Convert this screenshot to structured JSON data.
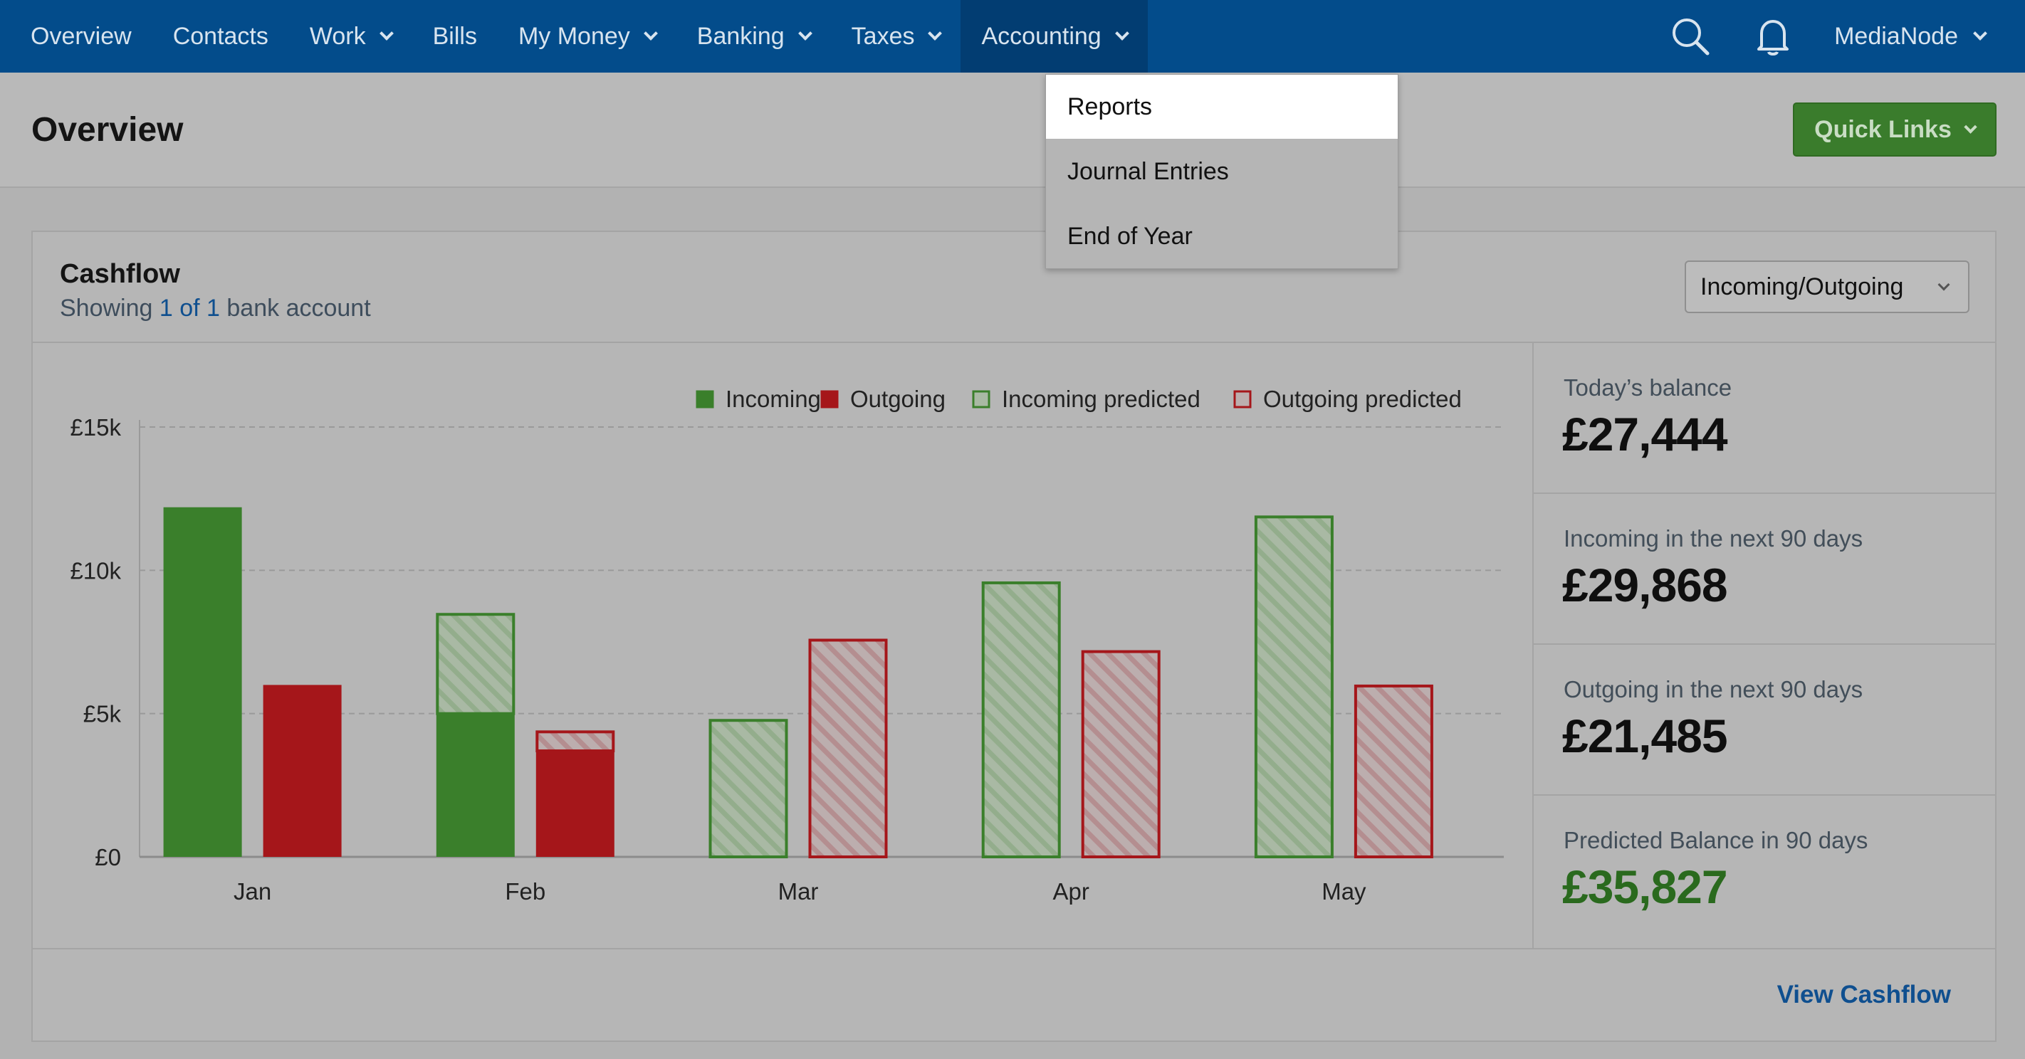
{
  "nav": {
    "items": [
      {
        "label": "Overview",
        "dropdown": false,
        "active": false
      },
      {
        "label": "Contacts",
        "dropdown": false,
        "active": false
      },
      {
        "label": "Work",
        "dropdown": true,
        "active": false
      },
      {
        "label": "Bills",
        "dropdown": false,
        "active": false
      },
      {
        "label": "My Money",
        "dropdown": true,
        "active": false
      },
      {
        "label": "Banking",
        "dropdown": true,
        "active": false
      },
      {
        "label": "Taxes",
        "dropdown": true,
        "active": false
      },
      {
        "label": "Accounting",
        "dropdown": true,
        "active": true
      }
    ],
    "user": "MediaNode",
    "icons": [
      "search-icon",
      "bell-icon"
    ]
  },
  "accounting_menu": {
    "items": [
      "Reports",
      "Journal Entries",
      "End of Year"
    ],
    "hovered": "Reports"
  },
  "header": {
    "title": "Overview",
    "quick_links": "Quick Links"
  },
  "cashflow": {
    "title": "Cashflow",
    "subtitle_prefix": "Showing ",
    "subtitle_link": "1 of 1",
    "subtitle_suffix": " bank account",
    "select_value": "Incoming/Outgoing",
    "view_link": "View Cashflow"
  },
  "stats": [
    {
      "label": "Today’s balance",
      "value": "£27,444",
      "positive": false
    },
    {
      "label": "Incoming in the next 90 days",
      "value": "£29,868",
      "positive": false
    },
    {
      "label": "Outgoing in the next 90 days",
      "value": "£21,485",
      "positive": false
    },
    {
      "label": "Predicted Balance in 90 days",
      "value": "£35,827",
      "positive": true
    }
  ],
  "colors": {
    "incoming": "#3a7f2b",
    "outgoing": "#a5161a",
    "nav_bg": "#034c8b"
  },
  "chart_data": {
    "type": "bar",
    "categories": [
      "Jan",
      "Feb",
      "Mar",
      "Apr",
      "May"
    ],
    "y_ticks": [
      "£0",
      "£5k",
      "£10k",
      "£15k"
    ],
    "ylim": [
      0,
      15000
    ],
    "grid": true,
    "legend_position": "top-right",
    "series": [
      {
        "name": "Incoming",
        "values": [
          12200,
          5000,
          0,
          0,
          0
        ]
      },
      {
        "name": "Outgoing",
        "values": [
          6000,
          3700,
          0,
          0,
          0
        ]
      },
      {
        "name": "Incoming predicted",
        "values": [
          0,
          3500,
          4800,
          9600,
          11900
        ]
      },
      {
        "name": "Outgoing predicted",
        "values": [
          0,
          700,
          7600,
          7200,
          6000
        ]
      }
    ]
  }
}
